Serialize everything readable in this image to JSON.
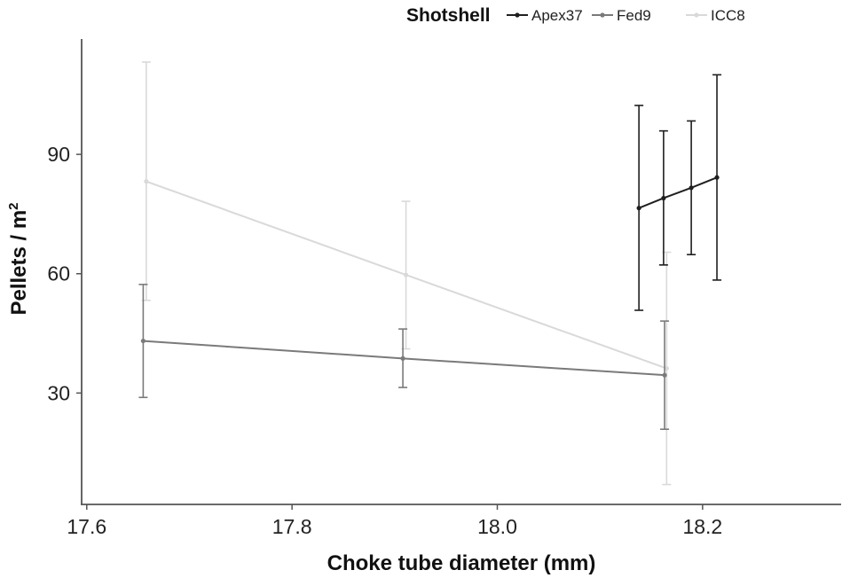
{
  "chart_data": {
    "type": "line",
    "xlabel": "Choke tube diameter (mm)",
    "ylabel": "Pellets / m",
    "ylabel_superscript": "2",
    "xlim": [
      17.595,
      18.335
    ],
    "ylim": [
      2,
      119
    ],
    "x_ticks": [
      17.6,
      17.8,
      18.0,
      18.2
    ],
    "x_tick_labels": [
      "17.6",
      "17.8",
      "18.0",
      "18.2"
    ],
    "y_ticks": [
      30,
      60,
      90
    ],
    "y_tick_labels": [
      "30",
      "60",
      "90"
    ],
    "grid": false,
    "legend": {
      "title": "Shotshell",
      "position": "top",
      "entries": [
        "Apex37",
        "Fed9",
        "ICC8"
      ]
    },
    "series": [
      {
        "name": "Apex37",
        "color": "#1f1f1f",
        "points": [
          {
            "x": 18.138,
            "y": 76.5,
            "lo": 50.8,
            "hi": 102.3
          },
          {
            "x": 18.162,
            "y": 79.0,
            "lo": 62.2,
            "hi": 95.9
          },
          {
            "x": 18.189,
            "y": 81.6,
            "lo": 64.8,
            "hi": 98.4
          },
          {
            "x": 18.214,
            "y": 84.2,
            "lo": 58.4,
            "hi": 110.0
          }
        ]
      },
      {
        "name": "Fed9",
        "color": "#7a7a7a",
        "points": [
          {
            "x": 17.655,
            "y": 43.1,
            "lo": 28.9,
            "hi": 57.3
          },
          {
            "x": 17.908,
            "y": 38.7,
            "lo": 31.4,
            "hi": 46.1
          },
          {
            "x": 18.163,
            "y": 34.5,
            "lo": 20.9,
            "hi": 48.1
          }
        ]
      },
      {
        "name": "ICC8",
        "color": "#d9d9d9",
        "points": [
          {
            "x": 17.658,
            "y": 83.2,
            "lo": 53.3,
            "hi": 113.2
          },
          {
            "x": 17.911,
            "y": 59.7,
            "lo": 41.1,
            "hi": 78.2
          },
          {
            "x": 18.165,
            "y": 36.2,
            "lo": 7.0,
            "hi": 65.4
          }
        ]
      }
    ]
  }
}
